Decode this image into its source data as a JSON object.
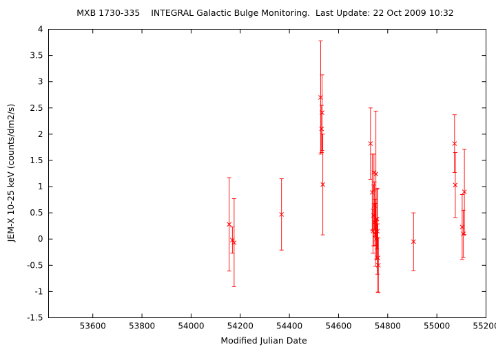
{
  "chart_data": {
    "type": "scatter",
    "title": "MXB 1730-335    INTEGRAL Galactic Bulge Monitoring.  Last Update: 22 Oct 2009 10:32",
    "xlabel": "Modified Julian Date",
    "ylabel": "JEM-X 10-25 keV (counts/dm2/s)",
    "xlim": [
      53420,
      55200
    ],
    "ylim": [
      -1.5,
      4
    ],
    "xticks": [
      53600,
      53800,
      54000,
      54200,
      54400,
      54600,
      54800,
      55000,
      55200
    ],
    "yticks": [
      -1.5,
      -1,
      -0.5,
      0,
      0.5,
      1,
      1.5,
      2,
      2.5,
      3,
      3.5,
      4
    ],
    "grid": false,
    "legend": "none",
    "colors": {
      "series": "#ff0000",
      "frame": "#000000"
    },
    "series": [
      {
        "marker": "x",
        "errorbars": "y",
        "points": [
          {
            "x": 54155,
            "y": 0.28,
            "err": 0.89
          },
          {
            "x": 54168,
            "y": -0.02,
            "err": 0.25
          },
          {
            "x": 54175,
            "y": -0.07,
            "err": 0.84
          },
          {
            "x": 54368,
            "y": 0.47,
            "err": 0.68
          },
          {
            "x": 54527,
            "y": 2.7,
            "err": 1.08
          },
          {
            "x": 54531,
            "y": 2.1,
            "err": 0.45
          },
          {
            "x": 54533,
            "y": 2.41,
            "err": 0.72
          },
          {
            "x": 54536,
            "y": 1.04,
            "err": 0.96
          },
          {
            "x": 54730,
            "y": 1.82,
            "err": 0.68
          },
          {
            "x": 54737,
            "y": 0.89,
            "err": 0.73
          },
          {
            "x": 54740,
            "y": 0.15,
            "err": 0.42
          },
          {
            "x": 54742,
            "y": 0.45,
            "err": 0.58
          },
          {
            "x": 54744,
            "y": 1.27,
            "err": 0.35
          },
          {
            "x": 54746,
            "y": 0.64,
            "err": 0.45
          },
          {
            "x": 54748,
            "y": 0.32,
            "err": 0.44
          },
          {
            "x": 54750,
            "y": 0.08,
            "err": 0.6
          },
          {
            "x": 54752,
            "y": 1.24,
            "err": 1.2
          },
          {
            "x": 54754,
            "y": 0.0,
            "err": 0.38
          },
          {
            "x": 54756,
            "y": 0.38,
            "err": 0.57
          },
          {
            "x": 54758,
            "y": 0.15,
            "err": 0.82
          },
          {
            "x": 54760,
            "y": -0.36,
            "err": 0.65
          },
          {
            "x": 54762,
            "y": -0.5,
            "err": 0.52
          },
          {
            "x": 54905,
            "y": -0.05,
            "err": 0.55
          },
          {
            "x": 55072,
            "y": 1.82,
            "err": 0.55
          },
          {
            "x": 55075,
            "y": 1.03,
            "err": 0.62
          },
          {
            "x": 55103,
            "y": 0.23,
            "err": 0.62
          },
          {
            "x": 55108,
            "y": 0.1,
            "err": 0.45
          },
          {
            "x": 55112,
            "y": 0.9,
            "err": 0.81
          }
        ]
      }
    ]
  }
}
